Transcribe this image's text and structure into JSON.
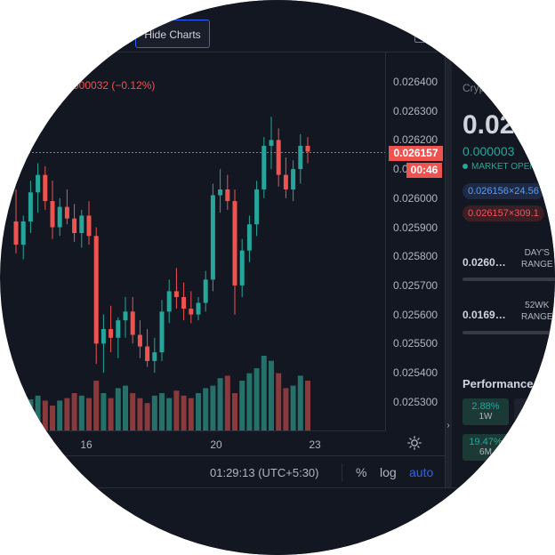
{
  "toolbar": {
    "hide_charts_label": "Hide Charts"
  },
  "chart": {
    "change_text": "000032 (−0.12%)",
    "current_price": "0.026157",
    "countdown": "00:46",
    "colors": {
      "up": "#26a69a",
      "down": "#ef5350",
      "volume_up": "#26706a",
      "volume_down": "#8a3a3c",
      "background": "#131722"
    }
  },
  "chart_data": {
    "type": "candlestick",
    "price_axis_ticks": [
      "0.026400",
      "0.026300",
      "0.026200",
      "0.026100",
      "0.026000",
      "0.025900",
      "0.025800",
      "0.025700",
      "0.025600",
      "0.025500",
      "0.025400",
      "0.025300"
    ],
    "time_axis_ticks": [
      "16",
      "20",
      "23"
    ],
    "ylim": [
      0.02524,
      0.0265
    ],
    "current_price_line": 0.026157,
    "candles": [
      {
        "o": 0.02592,
        "h": 0.02603,
        "l": 0.02581,
        "c": 0.02584
      },
      {
        "o": 0.02584,
        "h": 0.02594,
        "l": 0.02579,
        "c": 0.02592
      },
      {
        "o": 0.02592,
        "h": 0.02606,
        "l": 0.02588,
        "c": 0.02602
      },
      {
        "o": 0.02602,
        "h": 0.02612,
        "l": 0.02595,
        "c": 0.02608
      },
      {
        "o": 0.02608,
        "h": 0.02611,
        "l": 0.02596,
        "c": 0.02599
      },
      {
        "o": 0.02599,
        "h": 0.02606,
        "l": 0.02586,
        "c": 0.0259
      },
      {
        "o": 0.0259,
        "h": 0.026,
        "l": 0.02587,
        "c": 0.02597
      },
      {
        "o": 0.02597,
        "h": 0.02603,
        "l": 0.02591,
        "c": 0.02593
      },
      {
        "o": 0.02593,
        "h": 0.02598,
        "l": 0.02585,
        "c": 0.02588
      },
      {
        "o": 0.02588,
        "h": 0.02596,
        "l": 0.02583,
        "c": 0.02594
      },
      {
        "o": 0.02594,
        "h": 0.02599,
        "l": 0.02584,
        "c": 0.02587
      },
      {
        "o": 0.02587,
        "h": 0.0259,
        "l": 0.02543,
        "c": 0.0255
      },
      {
        "o": 0.0255,
        "h": 0.0256,
        "l": 0.0254,
        "c": 0.02555
      },
      {
        "o": 0.02555,
        "h": 0.02563,
        "l": 0.02547,
        "c": 0.02552
      },
      {
        "o": 0.02552,
        "h": 0.02559,
        "l": 0.02545,
        "c": 0.02558
      },
      {
        "o": 0.02558,
        "h": 0.02566,
        "l": 0.02552,
        "c": 0.02561
      },
      {
        "o": 0.02561,
        "h": 0.02566,
        "l": 0.0255,
        "c": 0.02553
      },
      {
        "o": 0.02553,
        "h": 0.02558,
        "l": 0.02545,
        "c": 0.02549
      },
      {
        "o": 0.02549,
        "h": 0.02555,
        "l": 0.02542,
        "c": 0.02544
      },
      {
        "o": 0.02544,
        "h": 0.02552,
        "l": 0.0254,
        "c": 0.02547
      },
      {
        "o": 0.02547,
        "h": 0.02565,
        "l": 0.02544,
        "c": 0.02561
      },
      {
        "o": 0.02561,
        "h": 0.02572,
        "l": 0.02557,
        "c": 0.02568
      },
      {
        "o": 0.02568,
        "h": 0.02576,
        "l": 0.02562,
        "c": 0.02566
      },
      {
        "o": 0.02566,
        "h": 0.02571,
        "l": 0.02558,
        "c": 0.02562
      },
      {
        "o": 0.02562,
        "h": 0.02568,
        "l": 0.02557,
        "c": 0.0256
      },
      {
        "o": 0.0256,
        "h": 0.02566,
        "l": 0.02558,
        "c": 0.02564
      },
      {
        "o": 0.02564,
        "h": 0.02575,
        "l": 0.02561,
        "c": 0.02572
      },
      {
        "o": 0.02572,
        "h": 0.02605,
        "l": 0.02568,
        "c": 0.02601
      },
      {
        "o": 0.02601,
        "h": 0.0261,
        "l": 0.02595,
        "c": 0.02603
      },
      {
        "o": 0.02603,
        "h": 0.02608,
        "l": 0.02596,
        "c": 0.02599
      },
      {
        "o": 0.02599,
        "h": 0.02603,
        "l": 0.0256,
        "c": 0.0257
      },
      {
        "o": 0.0257,
        "h": 0.02586,
        "l": 0.02566,
        "c": 0.02582
      },
      {
        "o": 0.02582,
        "h": 0.02594,
        "l": 0.02578,
        "c": 0.02591
      },
      {
        "o": 0.02591,
        "h": 0.02606,
        "l": 0.02587,
        "c": 0.02603
      },
      {
        "o": 0.02603,
        "h": 0.02621,
        "l": 0.026,
        "c": 0.02618
      },
      {
        "o": 0.02618,
        "h": 0.02628,
        "l": 0.0261,
        "c": 0.0262
      },
      {
        "o": 0.0262,
        "h": 0.02624,
        "l": 0.02604,
        "c": 0.02608
      },
      {
        "o": 0.02608,
        "h": 0.02614,
        "l": 0.026,
        "c": 0.02603
      },
      {
        "o": 0.02603,
        "h": 0.02613,
        "l": 0.02599,
        "c": 0.0261
      },
      {
        "o": 0.0261,
        "h": 0.02622,
        "l": 0.02605,
        "c": 0.02618
      },
      {
        "o": 0.02618,
        "h": 0.02621,
        "l": 0.02612,
        "c": 0.02616
      }
    ],
    "volumes": [
      22,
      30,
      25,
      28,
      24,
      20,
      24,
      26,
      30,
      28,
      26,
      40,
      30,
      26,
      34,
      36,
      30,
      26,
      22,
      28,
      30,
      26,
      32,
      28,
      26,
      30,
      34,
      36,
      42,
      44,
      30,
      40,
      46,
      50,
      60,
      56,
      46,
      34,
      36,
      44,
      40
    ]
  },
  "time_axis": {
    "settings_icon": "sun-icon"
  },
  "bottom_bar": {
    "clock": "01:29:13 (UTC+5:30)",
    "percent_label": "%",
    "log_label": "log",
    "auto_label": "auto"
  },
  "right_panel": {
    "subtitle": "Cryp",
    "price_big": "0.02",
    "change": "0.000003",
    "market_status": "MARKET OPEN",
    "bid": "0.026156×24.56",
    "ask": "0.026157×309.1",
    "days_range_value": "0.0260…",
    "days_range_label_1": "DAY'S",
    "days_range_label_2": "RANGE",
    "wk52_value": "0.0169…",
    "wk52_label_1": "52WK",
    "wk52_label_2": "RANGE",
    "performance_title": "Performance",
    "perf": [
      {
        "value": "2.88%",
        "label": "1W"
      },
      {
        "value": "19.47%",
        "label": "6M"
      }
    ]
  }
}
